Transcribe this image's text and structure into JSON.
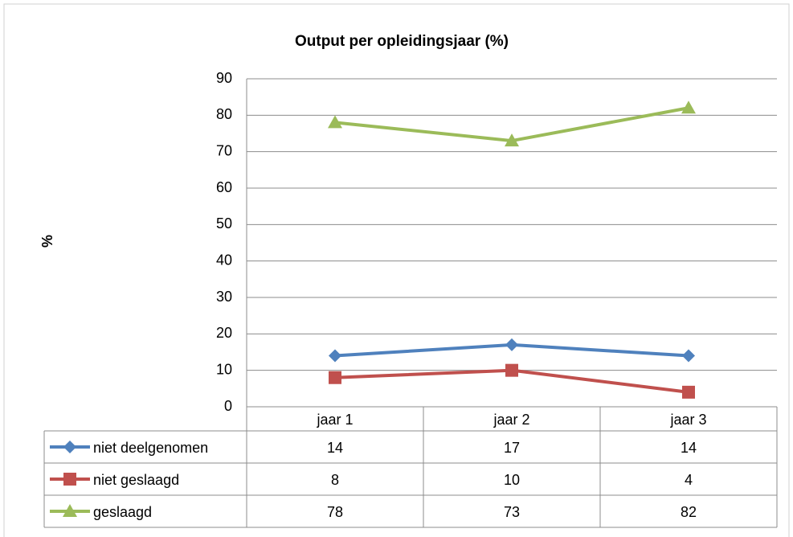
{
  "chart_data": {
    "type": "line",
    "title": "Output per opleidingsjaar (%)",
    "y_label": "%",
    "categories": [
      "jaar 1",
      "jaar 2",
      "jaar 3"
    ],
    "series": [
      {
        "name": "niet deelgenomen",
        "color": "#4f81bd",
        "marker": "diamond",
        "values": [
          14,
          17,
          14
        ]
      },
      {
        "name": "niet geslaagd",
        "color": "#c0504d",
        "marker": "square",
        "values": [
          8,
          10,
          4
        ]
      },
      {
        "name": "geslaagd",
        "color": "#9bbb59",
        "marker": "triangle",
        "values": [
          78,
          73,
          82
        ]
      }
    ],
    "ylim": [
      0,
      90
    ],
    "yticks": [
      0,
      10,
      20,
      30,
      40,
      50,
      60,
      70,
      80,
      90
    ],
    "grid": true,
    "data_table": true
  }
}
